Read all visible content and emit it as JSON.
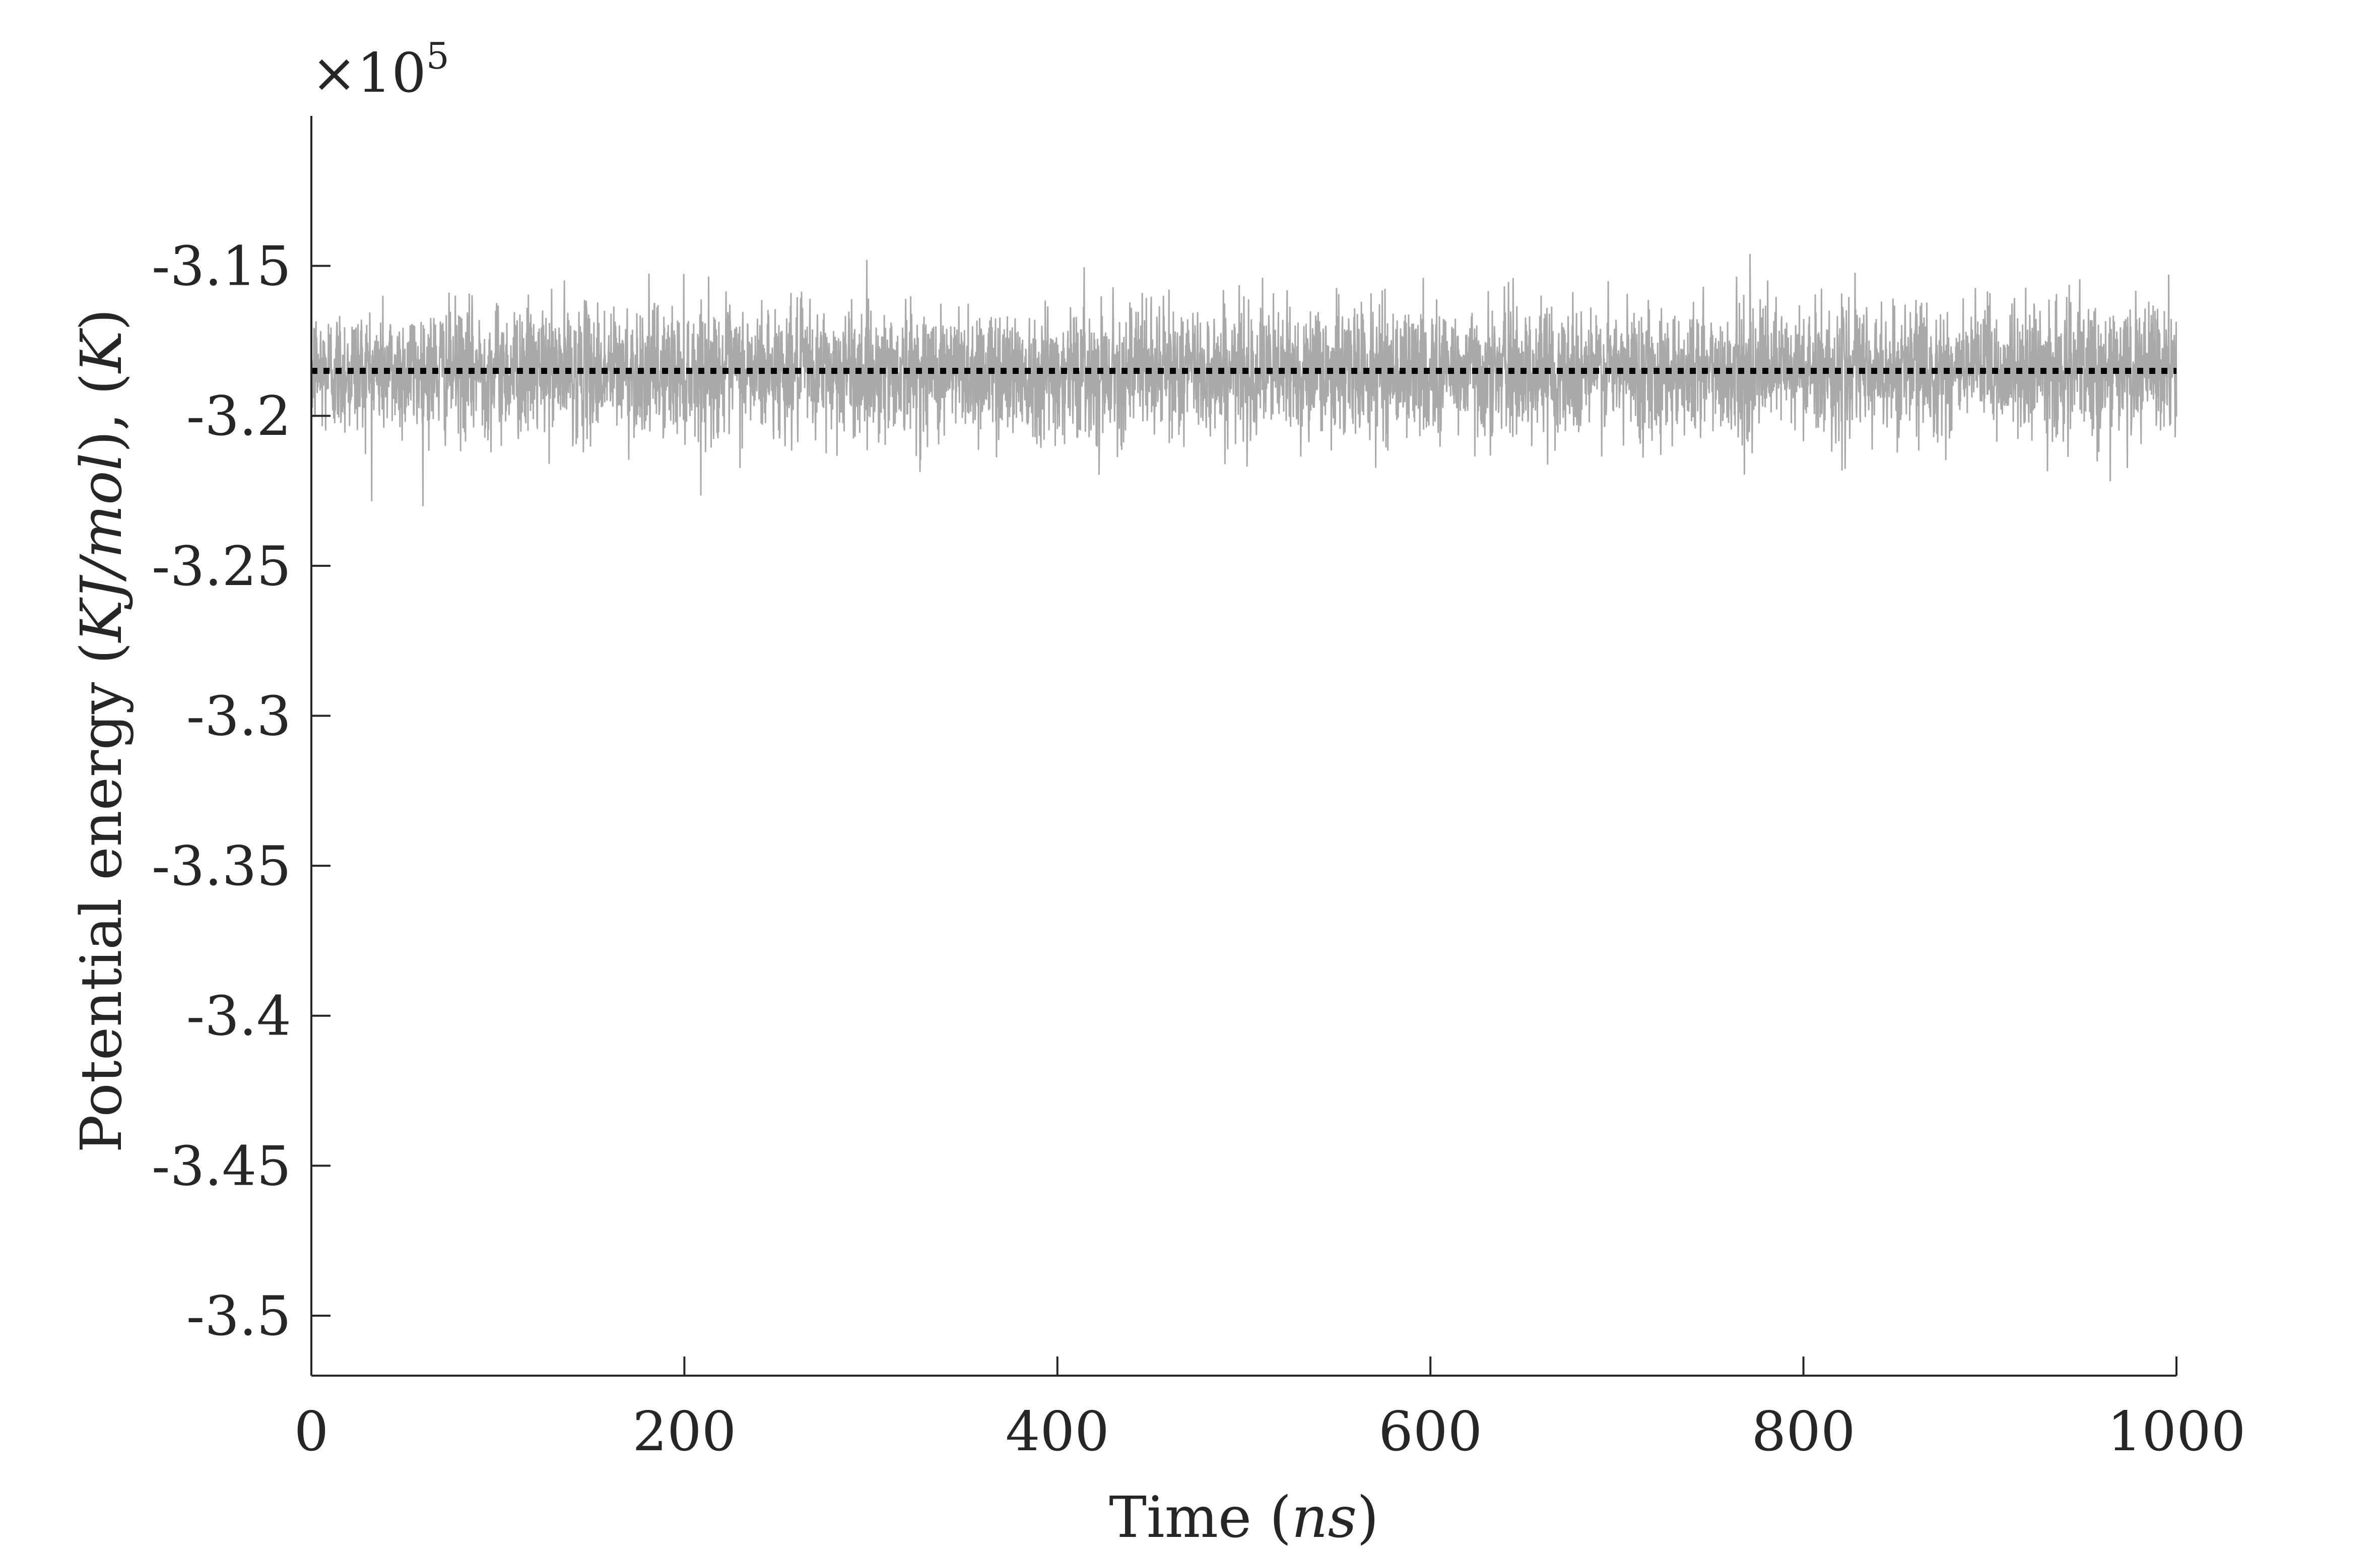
{
  "chart_data": {
    "type": "line",
    "title": "",
    "xlabel": {
      "prefix": "Time (",
      "unit": "ns",
      "suffix": ")"
    },
    "ylabel": {
      "prefix": "Potential energy (",
      "unit1": "KJ/mol",
      "middle": "), (",
      "unit2": "K",
      "suffix": ")"
    },
    "y_multiplier": {
      "base": "×10",
      "exponent": "5"
    },
    "xlim": [
      0,
      1000
    ],
    "ylim": [
      -3.52,
      -3.1
    ],
    "x_ticks": [
      0,
      200,
      400,
      600,
      800,
      1000
    ],
    "x_tick_labels": [
      "0",
      "200",
      "400",
      "600",
      "800",
      "1000"
    ],
    "y_ticks": [
      -3.15,
      -3.2,
      -3.25,
      -3.3,
      -3.35,
      -3.4,
      -3.45,
      -3.5
    ],
    "y_tick_labels": [
      "-3.15",
      "-3.2",
      "-3.25",
      "-3.3",
      "-3.35",
      "-3.4",
      "-3.45",
      "-3.5"
    ],
    "grid": false,
    "legend": "none",
    "series": [
      {
        "style": "solid",
        "color": "#a9a9a9",
        "description_values": {
          "x_start": 0,
          "x_end": 1000,
          "mean": -3.185,
          "band_upper": -3.165,
          "band_lower": -3.21,
          "max_spike": -3.136,
          "min_spike": -3.236
        },
        "sample_step": 1
      },
      {
        "style": "dotted",
        "color": "#000000",
        "x": [
          0,
          1000
        ],
        "y": [
          -3.185,
          -3.185
        ]
      }
    ]
  }
}
